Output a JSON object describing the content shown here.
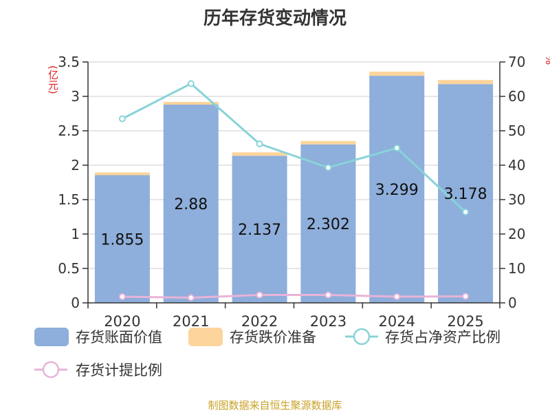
{
  "title": "历年存货变动情况",
  "footer": "制图数据来自恒生聚源数据库",
  "chart_data": {
    "type": "bar",
    "categories": [
      "2020",
      "2021",
      "2022",
      "2023",
      "2024",
      "2025"
    ],
    "series": [
      {
        "name": "存货账面价值",
        "kind": "bar",
        "axis": "left",
        "stack": "inv",
        "values": [
          1.855,
          2.88,
          2.137,
          2.302,
          3.299,
          3.178
        ],
        "data_labels": [
          "1.855",
          "2.88",
          "2.137",
          "2.302",
          "3.299",
          "3.178"
        ]
      },
      {
        "name": "存货跌价准备",
        "kind": "bar",
        "axis": "left",
        "stack": "inv",
        "values": [
          0.04,
          0.04,
          0.05,
          0.05,
          0.06,
          0.06
        ]
      },
      {
        "name": "存货占净资产比例",
        "kind": "line",
        "axis": "right",
        "values": [
          53.5,
          63.7,
          46.2,
          39.3,
          45.0,
          26.4
        ]
      },
      {
        "name": "存货计提比例",
        "kind": "line",
        "axis": "right",
        "values": [
          1.8,
          1.5,
          2.3,
          2.3,
          1.8,
          1.9
        ]
      }
    ],
    "y_unit": "(亿元)",
    "y2_unit": "%",
    "ylim": [
      0,
      3.5
    ],
    "yticks": [
      "0",
      "0.5",
      "1",
      "1.5",
      "2",
      "2.5",
      "3",
      "3.5"
    ],
    "y2lim": [
      0,
      70
    ],
    "y2ticks": [
      "0",
      "10",
      "20",
      "30",
      "40",
      "50",
      "60",
      "70"
    ],
    "grid": true,
    "legend_position": "bottom",
    "colors": {
      "bar_main": "#8eaedb",
      "bar_reserve": "#fdd49b",
      "line_ratio": "#88d3d8",
      "line_provision": "#e8b4d8",
      "axis": "#333333",
      "grid": "#cccccc"
    }
  }
}
